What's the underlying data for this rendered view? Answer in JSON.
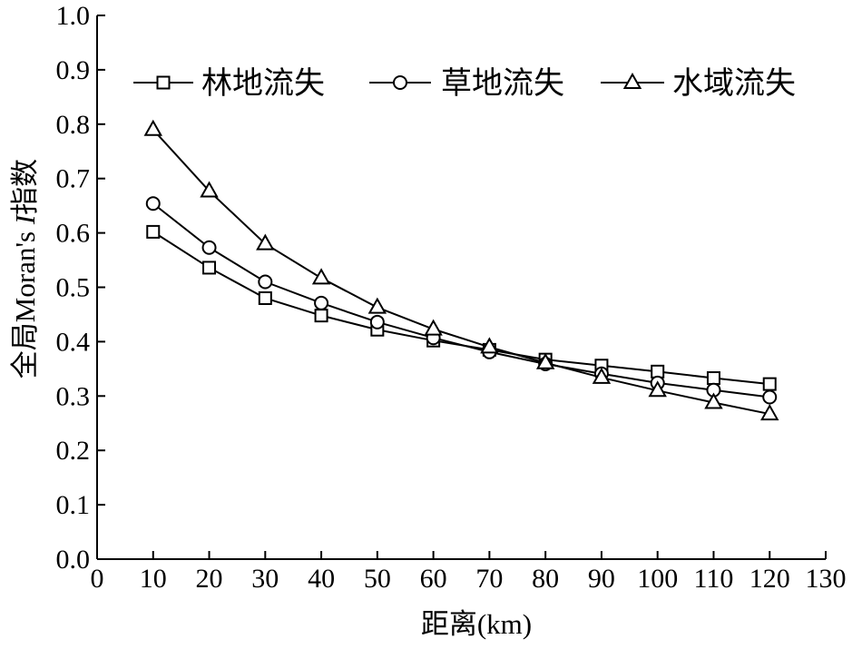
{
  "chart_data": {
    "type": "line",
    "xlabel": "距离(km)",
    "ylabel_prefix": "全局Moran's ",
    "ylabel_italic": "I",
    "ylabel_suffix": "指数",
    "xlim": [
      0,
      130
    ],
    "ylim": [
      0.0,
      1.0
    ],
    "x_ticks": [
      0,
      10,
      20,
      30,
      40,
      50,
      60,
      70,
      80,
      90,
      100,
      110,
      120,
      130
    ],
    "x_tick_labels": [
      "0",
      "10",
      "20",
      "30",
      "40",
      "50",
      "60",
      "70",
      "80",
      "90",
      "100",
      "110",
      "120",
      "130"
    ],
    "y_ticks": [
      0.0,
      0.1,
      0.2,
      0.3,
      0.4,
      0.5,
      0.6,
      0.7,
      0.8,
      0.9,
      1.0
    ],
    "y_tick_labels": [
      "0.0",
      "0.1",
      "0.2",
      "0.3",
      "0.4",
      "0.5",
      "0.6",
      "0.7",
      "0.8",
      "0.9",
      "1.0"
    ],
    "x": [
      10,
      20,
      30,
      40,
      50,
      60,
      70,
      80,
      90,
      100,
      110,
      120
    ],
    "grid": false,
    "legend_position": "top",
    "series": [
      {
        "name": "林地流失",
        "marker": "square",
        "values": [
          0.602,
          0.536,
          0.48,
          0.448,
          0.422,
          0.402,
          0.385,
          0.367,
          0.356,
          0.345,
          0.333,
          0.322
        ]
      },
      {
        "name": "草地流失",
        "marker": "circle",
        "values": [
          0.654,
          0.573,
          0.51,
          0.471,
          0.436,
          0.407,
          0.381,
          0.359,
          0.341,
          0.324,
          0.311,
          0.298
        ]
      },
      {
        "name": "水域流失",
        "marker": "triangle",
        "values": [
          0.79,
          0.677,
          0.58,
          0.517,
          0.463,
          0.423,
          0.39,
          0.361,
          0.334,
          0.31,
          0.288,
          0.267
        ]
      }
    ],
    "colors": {
      "line": "#000000",
      "marker_fill": "#ffffff",
      "background": "#ffffff"
    }
  }
}
